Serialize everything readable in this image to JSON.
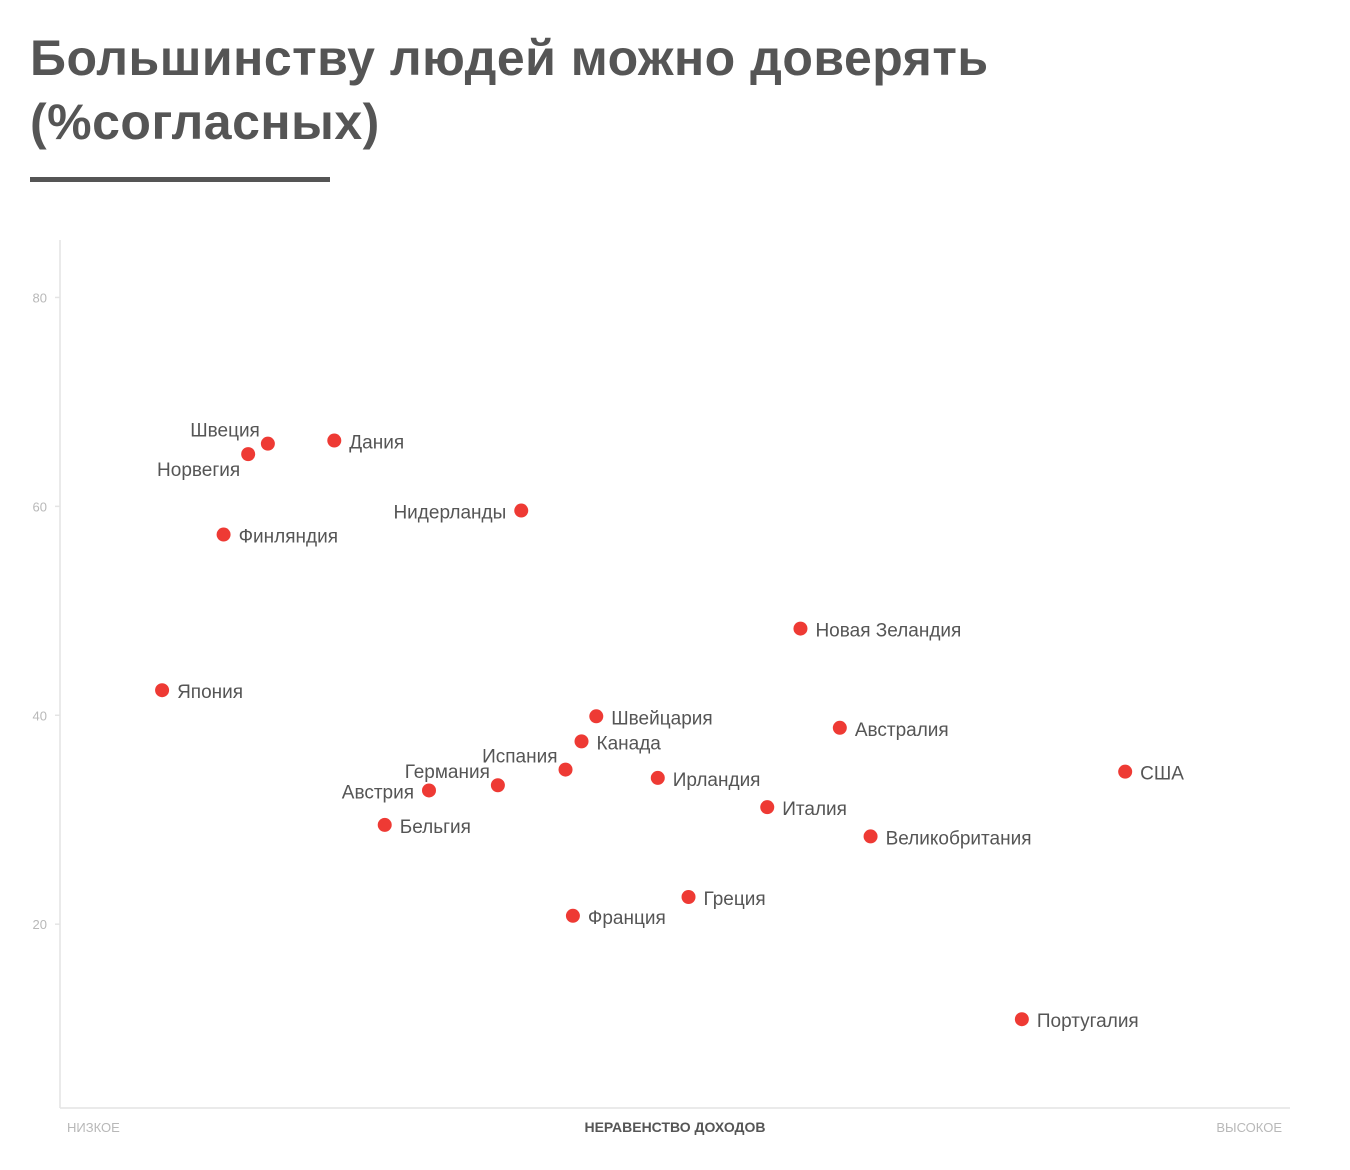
{
  "chart_data": {
    "type": "scatter",
    "title": "Большинству людей можно доверять (%согласных)",
    "xlabel": "НЕРАВЕНСТВО ДОХОДОВ",
    "x_low_label": "НИЗКОЕ",
    "x_high_label": "ВЫСОКОЕ",
    "ylabel": "",
    "ylim": [
      2.4,
      85.5
    ],
    "xlim": [
      0,
      100
    ],
    "y_ticks": [
      20,
      40,
      60,
      80
    ],
    "grid": false,
    "point_color": "#ee3a34",
    "points": [
      {
        "label": "Швеция",
        "x": 16.9,
        "y": 66.0,
        "pos": "left-up"
      },
      {
        "label": "Норвегия",
        "x": 15.3,
        "y": 65.0,
        "pos": "left-down"
      },
      {
        "label": "Дания",
        "x": 22.3,
        "y": 66.3,
        "pos": "right"
      },
      {
        "label": "Нидерланды",
        "x": 37.5,
        "y": 59.6,
        "pos": "left"
      },
      {
        "label": "Финляндия",
        "x": 13.3,
        "y": 57.3,
        "pos": "right"
      },
      {
        "label": "Новая Зеландия",
        "x": 60.2,
        "y": 48.3,
        "pos": "right"
      },
      {
        "label": "Япония",
        "x": 8.3,
        "y": 42.4,
        "pos": "right"
      },
      {
        "label": "Швейцария",
        "x": 43.6,
        "y": 39.9,
        "pos": "right"
      },
      {
        "label": "Австралия",
        "x": 63.4,
        "y": 38.8,
        "pos": "right"
      },
      {
        "label": "Канада",
        "x": 42.4,
        "y": 37.5,
        "pos": "right"
      },
      {
        "label": "Испания",
        "x": 41.1,
        "y": 34.8,
        "pos": "left-up"
      },
      {
        "label": "Германия",
        "x": 35.6,
        "y": 33.3,
        "pos": "left-up"
      },
      {
        "label": "Австрия",
        "x": 30.0,
        "y": 32.8,
        "pos": "left"
      },
      {
        "label": "Ирландия",
        "x": 48.6,
        "y": 34.0,
        "pos": "right"
      },
      {
        "label": "США",
        "x": 86.6,
        "y": 34.6,
        "pos": "right"
      },
      {
        "label": "Италия",
        "x": 57.5,
        "y": 31.2,
        "pos": "right"
      },
      {
        "label": "Бельгия",
        "x": 26.4,
        "y": 29.5,
        "pos": "right"
      },
      {
        "label": "Великобритания",
        "x": 65.9,
        "y": 28.4,
        "pos": "right"
      },
      {
        "label": "Греция",
        "x": 51.1,
        "y": 22.6,
        "pos": "right"
      },
      {
        "label": "Франция",
        "x": 41.7,
        "y": 20.8,
        "pos": "right"
      },
      {
        "label": "Португалия",
        "x": 78.2,
        "y": 10.9,
        "pos": "right"
      }
    ]
  }
}
